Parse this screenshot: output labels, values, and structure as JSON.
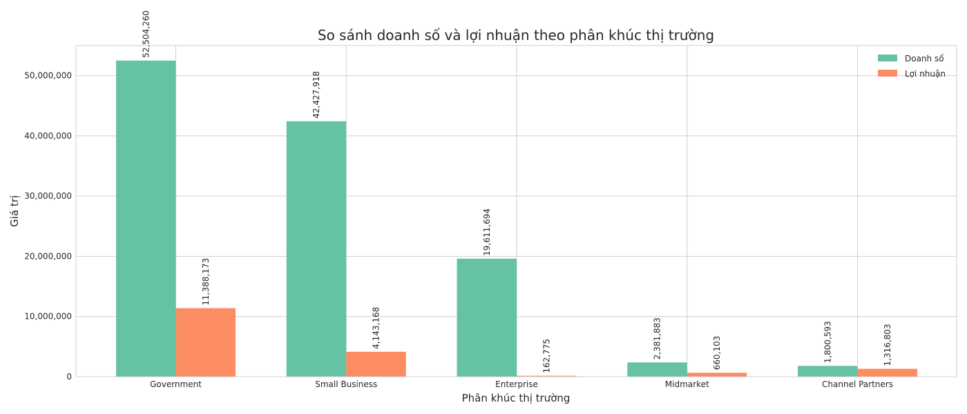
{
  "chart_data": {
    "type": "bar",
    "title": "So sánh doanh số và lợi nhuận theo phân khúc thị trường",
    "xlabel": "Phân khúc thị trường",
    "ylabel": "Giá trị",
    "categories": [
      "Government",
      "Small Business",
      "Enterprise",
      "Midmarket",
      "Channel Partners"
    ],
    "series": [
      {
        "name": "Doanh số",
        "color": "#66c2a5",
        "values": [
          52504260,
          42427918,
          19611694,
          2381883,
          1800593
        ]
      },
      {
        "name": "Lợi nhuận",
        "color": "#fc8d62",
        "values": [
          11388173,
          4143168,
          162775,
          660103,
          1316803
        ]
      }
    ],
    "data_labels": [
      [
        "52,504,260",
        "42,427,918",
        "19,611,694",
        "2,381,883",
        "1,800,593"
      ],
      [
        "11,388,173",
        "4,143,168",
        "162,775",
        "660,103",
        "1,316,803"
      ]
    ],
    "ylim": [
      0,
      55000000
    ],
    "yticks": [
      0,
      10000000,
      20000000,
      30000000,
      40000000,
      50000000
    ],
    "ytick_labels": [
      "0",
      "10,000,000",
      "20,000,000",
      "30,000,000",
      "40,000,000",
      "50,000,000"
    ],
    "grid": true,
    "legend_position": "top-right"
  }
}
